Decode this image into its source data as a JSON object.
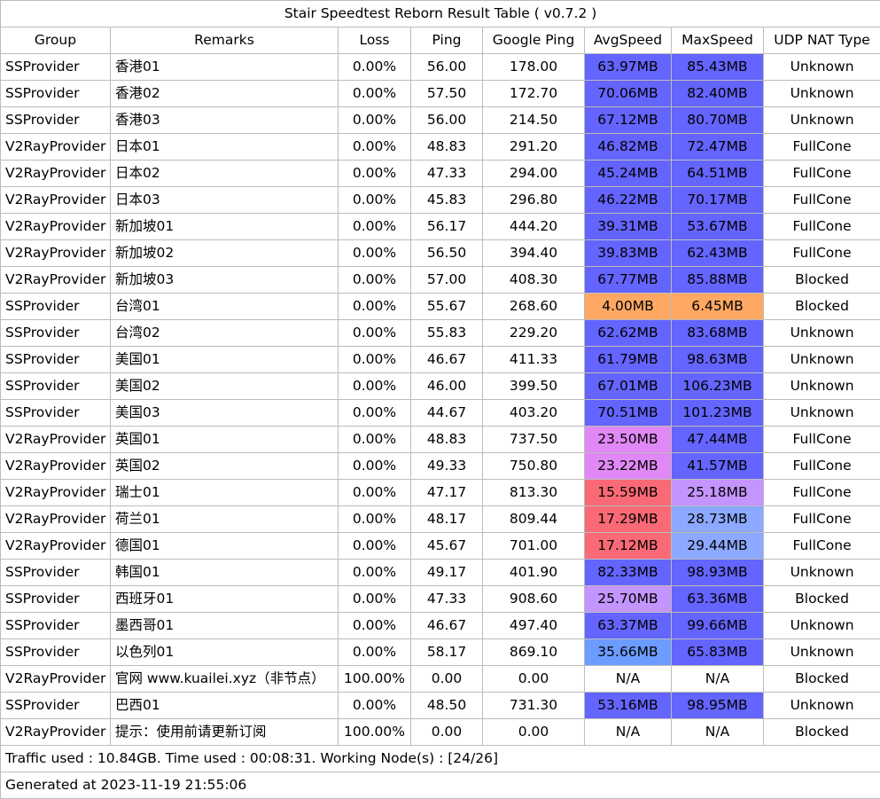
{
  "title": "Stair Speedtest Reborn Result Table ( v0.7.2 )",
  "columns": [
    "Group",
    "Remarks",
    "Loss",
    "Ping",
    "Google Ping",
    "AvgSpeed",
    "MaxSpeed",
    "UDP NAT Type"
  ],
  "colors": {
    "blue": "#6464ff",
    "orange": "#ffa864",
    "pink": "#e088f5",
    "red": "#fa6a76",
    "lavender": "#c494ff",
    "light_blue": "#8ca8ff",
    "sky_blue": "#6c9cff",
    "none": "#ffffff"
  },
  "rows": [
    {
      "group": "SSProvider",
      "remarks": "香港01",
      "loss": "0.00%",
      "ping": "56.00",
      "google_ping": "178.00",
      "avg": "63.97MB",
      "max": "85.43MB",
      "nat": "Unknown",
      "avg_color": "blue",
      "max_color": "blue"
    },
    {
      "group": "SSProvider",
      "remarks": "香港02",
      "loss": "0.00%",
      "ping": "57.50",
      "google_ping": "172.70",
      "avg": "70.06MB",
      "max": "82.40MB",
      "nat": "Unknown",
      "avg_color": "blue",
      "max_color": "blue"
    },
    {
      "group": "SSProvider",
      "remarks": "香港03",
      "loss": "0.00%",
      "ping": "56.00",
      "google_ping": "214.50",
      "avg": "67.12MB",
      "max": "80.70MB",
      "nat": "Unknown",
      "avg_color": "blue",
      "max_color": "blue"
    },
    {
      "group": "V2RayProvider",
      "remarks": "日本01",
      "loss": "0.00%",
      "ping": "48.83",
      "google_ping": "291.20",
      "avg": "46.82MB",
      "max": "72.47MB",
      "nat": "FullCone",
      "avg_color": "blue",
      "max_color": "blue"
    },
    {
      "group": "V2RayProvider",
      "remarks": "日本02",
      "loss": "0.00%",
      "ping": "47.33",
      "google_ping": "294.00",
      "avg": "45.24MB",
      "max": "64.51MB",
      "nat": "FullCone",
      "avg_color": "blue",
      "max_color": "blue"
    },
    {
      "group": "V2RayProvider",
      "remarks": "日本03",
      "loss": "0.00%",
      "ping": "45.83",
      "google_ping": "296.80",
      "avg": "46.22MB",
      "max": "70.17MB",
      "nat": "FullCone",
      "avg_color": "blue",
      "max_color": "blue"
    },
    {
      "group": "V2RayProvider",
      "remarks": "新加坡01",
      "loss": "0.00%",
      "ping": "56.17",
      "google_ping": "444.20",
      "avg": "39.31MB",
      "max": "53.67MB",
      "nat": "FullCone",
      "avg_color": "blue",
      "max_color": "blue"
    },
    {
      "group": "V2RayProvider",
      "remarks": "新加坡02",
      "loss": "0.00%",
      "ping": "56.50",
      "google_ping": "394.40",
      "avg": "39.83MB",
      "max": "62.43MB",
      "nat": "FullCone",
      "avg_color": "blue",
      "max_color": "blue"
    },
    {
      "group": "V2RayProvider",
      "remarks": "新加坡03",
      "loss": "0.00%",
      "ping": "57.00",
      "google_ping": "408.30",
      "avg": "67.77MB",
      "max": "85.88MB",
      "nat": "Blocked",
      "avg_color": "blue",
      "max_color": "blue"
    },
    {
      "group": "SSProvider",
      "remarks": "台湾01",
      "loss": "0.00%",
      "ping": "55.67",
      "google_ping": "268.60",
      "avg": "4.00MB",
      "max": "6.45MB",
      "nat": "Blocked",
      "avg_color": "orange",
      "max_color": "orange"
    },
    {
      "group": "SSProvider",
      "remarks": "台湾02",
      "loss": "0.00%",
      "ping": "55.83",
      "google_ping": "229.20",
      "avg": "62.62MB",
      "max": "83.68MB",
      "nat": "Unknown",
      "avg_color": "blue",
      "max_color": "blue"
    },
    {
      "group": "SSProvider",
      "remarks": "美国01",
      "loss": "0.00%",
      "ping": "46.67",
      "google_ping": "411.33",
      "avg": "61.79MB",
      "max": "98.63MB",
      "nat": "Unknown",
      "avg_color": "blue",
      "max_color": "blue"
    },
    {
      "group": "SSProvider",
      "remarks": "美国02",
      "loss": "0.00%",
      "ping": "46.00",
      "google_ping": "399.50",
      "avg": "67.01MB",
      "max": "106.23MB",
      "nat": "Unknown",
      "avg_color": "blue",
      "max_color": "blue"
    },
    {
      "group": "SSProvider",
      "remarks": "美国03",
      "loss": "0.00%",
      "ping": "44.67",
      "google_ping": "403.20",
      "avg": "70.51MB",
      "max": "101.23MB",
      "nat": "Unknown",
      "avg_color": "blue",
      "max_color": "blue"
    },
    {
      "group": "V2RayProvider",
      "remarks": "英国01",
      "loss": "0.00%",
      "ping": "48.83",
      "google_ping": "737.50",
      "avg": "23.50MB",
      "max": "47.44MB",
      "nat": "FullCone",
      "avg_color": "pink",
      "max_color": "blue"
    },
    {
      "group": "V2RayProvider",
      "remarks": "英国02",
      "loss": "0.00%",
      "ping": "49.33",
      "google_ping": "750.80",
      "avg": "23.22MB",
      "max": "41.57MB",
      "nat": "FullCone",
      "avg_color": "pink",
      "max_color": "blue"
    },
    {
      "group": "V2RayProvider",
      "remarks": "瑞士01",
      "loss": "0.00%",
      "ping": "47.17",
      "google_ping": "813.30",
      "avg": "15.59MB",
      "max": "25.18MB",
      "nat": "FullCone",
      "avg_color": "red",
      "max_color": "lavender"
    },
    {
      "group": "V2RayProvider",
      "remarks": "荷兰01",
      "loss": "0.00%",
      "ping": "48.17",
      "google_ping": "809.44",
      "avg": "17.29MB",
      "max": "28.73MB",
      "nat": "FullCone",
      "avg_color": "red",
      "max_color": "light_blue"
    },
    {
      "group": "V2RayProvider",
      "remarks": "德国01",
      "loss": "0.00%",
      "ping": "45.67",
      "google_ping": "701.00",
      "avg": "17.12MB",
      "max": "29.44MB",
      "nat": "FullCone",
      "avg_color": "red",
      "max_color": "light_blue"
    },
    {
      "group": "SSProvider",
      "remarks": "韩国01",
      "loss": "0.00%",
      "ping": "49.17",
      "google_ping": "401.90",
      "avg": "82.33MB",
      "max": "98.93MB",
      "nat": "Unknown",
      "avg_color": "blue",
      "max_color": "blue"
    },
    {
      "group": "SSProvider",
      "remarks": "西班牙01",
      "loss": "0.00%",
      "ping": "47.33",
      "google_ping": "908.60",
      "avg": "25.70MB",
      "max": "63.36MB",
      "nat": "Blocked",
      "avg_color": "lavender",
      "max_color": "blue"
    },
    {
      "group": "SSProvider",
      "remarks": "墨西哥01",
      "loss": "0.00%",
      "ping": "46.67",
      "google_ping": "497.40",
      "avg": "63.37MB",
      "max": "99.66MB",
      "nat": "Unknown",
      "avg_color": "blue",
      "max_color": "blue"
    },
    {
      "group": "SSProvider",
      "remarks": "以色列01",
      "loss": "0.00%",
      "ping": "58.17",
      "google_ping": "869.10",
      "avg": "35.66MB",
      "max": "65.83MB",
      "nat": "Unknown",
      "avg_color": "sky_blue",
      "max_color": "blue"
    },
    {
      "group": "V2RayProvider",
      "remarks": "官网 www.kuailei.xyz（非节点）",
      "loss": "100.00%",
      "ping": "0.00",
      "google_ping": "0.00",
      "avg": "N/A",
      "max": "N/A",
      "nat": "Blocked",
      "avg_color": "none",
      "max_color": "none"
    },
    {
      "group": "SSProvider",
      "remarks": "巴西01",
      "loss": "0.00%",
      "ping": "48.50",
      "google_ping": "731.30",
      "avg": "53.16MB",
      "max": "98.95MB",
      "nat": "Unknown",
      "avg_color": "blue",
      "max_color": "blue"
    },
    {
      "group": "V2RayProvider",
      "remarks": "提示：使用前请更新订阅",
      "loss": "100.00%",
      "ping": "0.00",
      "google_ping": "0.00",
      "avg": "N/A",
      "max": "N/A",
      "nat": "Blocked",
      "avg_color": "none",
      "max_color": "none"
    }
  ],
  "footer": {
    "traffic": "Traffic used : 10.84GB. Time used : 00:08:31. Working Node(s) : [24/26]",
    "generated": "Generated at 2023-11-19 21:55:06"
  }
}
